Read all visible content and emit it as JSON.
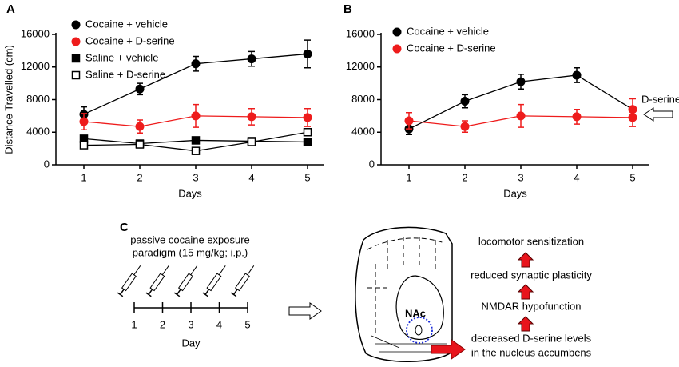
{
  "chart_data": [
    {
      "type": "line",
      "panel": "A",
      "ylabel": "Distance Travelled (cm)",
      "xlabel": "Days",
      "x": [
        1,
        2,
        3,
        4,
        5
      ],
      "xlim": [
        0.5,
        5.3
      ],
      "xticks": [
        1,
        2,
        3,
        4,
        5
      ],
      "ylim": [
        0,
        16000
      ],
      "yticks": [
        0,
        4000,
        8000,
        12000,
        16000
      ],
      "legend": "upper left",
      "series": [
        {
          "name": "Cocaine + vehicle",
          "color": "#000000",
          "marker": "circle",
          "values": [
            6200,
            9300,
            12400,
            13000,
            13600
          ],
          "errors": [
            900,
            700,
            900,
            900,
            1700
          ]
        },
        {
          "name": "Cocaine + D-serine",
          "color": "#ee1c1c",
          "marker": "circle",
          "values": [
            5300,
            4700,
            6000,
            5900,
            5800
          ],
          "errors": [
            1000,
            800,
            1400,
            1000,
            1100
          ]
        },
        {
          "name": "Saline + vehicle",
          "color": "#000000",
          "marker": "square",
          "values": [
            3200,
            2600,
            3000,
            2900,
            2800
          ],
          "errors": [
            300,
            300,
            300,
            300,
            300
          ]
        },
        {
          "name": "Saline + D-serine",
          "color": "#000000",
          "marker": "square-open",
          "values": [
            2400,
            2500,
            1700,
            2800,
            4000
          ],
          "errors": [
            300,
            300,
            300,
            300,
            400
          ]
        }
      ]
    },
    {
      "type": "line",
      "panel": "B",
      "xlabel": "Days",
      "x": [
        1,
        2,
        3,
        4,
        5
      ],
      "xlim": [
        0.5,
        5.3
      ],
      "xticks": [
        1,
        2,
        3,
        4,
        5
      ],
      "ylim": [
        0,
        16000
      ],
      "yticks": [
        0,
        4000,
        8000,
        12000,
        16000
      ],
      "legend": "upper left",
      "annotation": "D-serine",
      "series": [
        {
          "name": "Cocaine + vehicle",
          "color": "#000000",
          "marker": "circle",
          "marker_colors": [
            "#000000",
            "#000000",
            "#000000",
            "#000000",
            "#ee1c1c"
          ],
          "values": [
            4400,
            7800,
            10200,
            11000,
            6800
          ],
          "errors": [
            700,
            800,
            900,
            900,
            1300
          ]
        },
        {
          "name": "Cocaine + D-serine",
          "color": "#ee1c1c",
          "marker": "circle",
          "values": [
            5400,
            4700,
            6000,
            5900,
            5800
          ],
          "errors": [
            1000,
            700,
            1400,
            900,
            1100
          ]
        }
      ]
    }
  ],
  "panel_c": {
    "label": "C",
    "paradigm": [
      "passive cocaine exposure",
      "paradigm (15 mg/kg; i.p.)"
    ],
    "days": [
      "1",
      "2",
      "3",
      "4",
      "5"
    ],
    "day_label": "Day",
    "region": "NAc",
    "cascade": [
      "locomotor sensitization",
      "reduced synaptic plasticity",
      "NMDAR hypofunction",
      "decreased D-serine levels",
      "in the nucleus accumbens"
    ]
  }
}
